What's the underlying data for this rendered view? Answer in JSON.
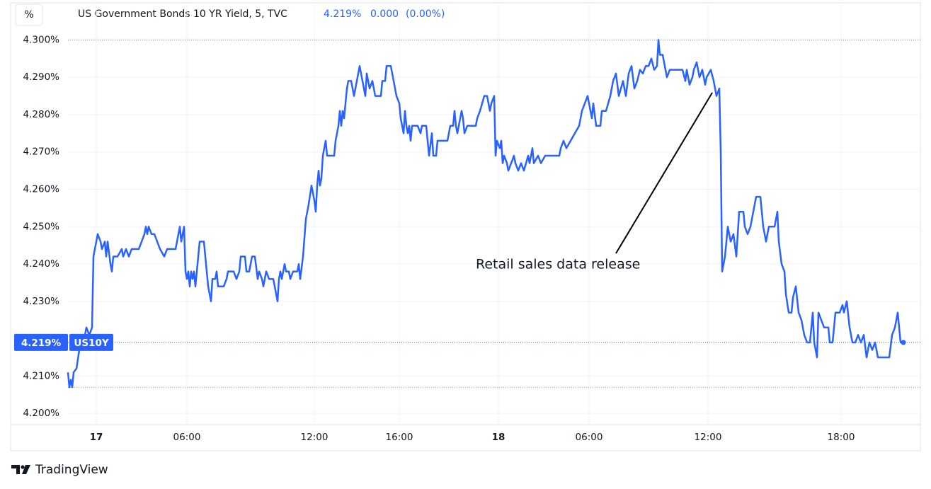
{
  "chart_data": {
    "type": "line",
    "unit": "%",
    "title": "US Government Bonds 10 YR Yield, 5, TVC",
    "last": {
      "value": 4.219,
      "label": "4.219%"
    },
    "change": "0.000",
    "change_pct": "(0.00%)",
    "symbol": "US10Y",
    "annotations": [
      "Retail sales data release"
    ],
    "brand": "TradingView",
    "high": 4.3,
    "low": 4.207,
    "grid": true,
    "xlim": [
      0,
      602
    ],
    "ylim": [
      4.197,
      4.305
    ],
    "yticks": [
      {
        "value": 4.2,
        "label": "4.200%"
      },
      {
        "value": 4.21,
        "label": "4.210%"
      },
      {
        "value": 4.23,
        "label": "4.230%"
      },
      {
        "value": 4.24,
        "label": "4.240%"
      },
      {
        "value": 4.25,
        "label": "4.250%"
      },
      {
        "value": 4.26,
        "label": "4.260%"
      },
      {
        "value": 4.27,
        "label": "4.270%"
      },
      {
        "value": 4.28,
        "label": "4.280%"
      },
      {
        "value": 4.29,
        "label": "4.290%"
      },
      {
        "value": 4.3,
        "label": "4.300%"
      }
    ],
    "xticks": [
      {
        "value": 20,
        "label": "17"
      },
      {
        "value": 84,
        "label": "06:00"
      },
      {
        "value": 174,
        "label": "12:00"
      },
      {
        "value": 234,
        "label": "16:00"
      },
      {
        "value": 304,
        "label": "18"
      },
      {
        "value": 368,
        "label": "06:00"
      },
      {
        "value": 452,
        "label": "12:00"
      },
      {
        "value": 546,
        "label": "18:00"
      }
    ],
    "x": [
      0,
      1,
      2,
      3,
      4,
      6,
      8,
      10,
      12,
      13,
      15,
      17,
      18,
      19,
      21,
      23,
      24,
      26,
      27,
      28,
      30,
      31,
      32,
      35,
      38,
      39,
      41,
      43,
      45,
      50,
      52,
      54,
      55,
      56,
      57,
      59,
      61,
      63,
      65,
      68,
      70,
      76,
      78,
      79,
      80,
      82,
      83,
      84,
      85,
      86,
      87,
      88,
      89,
      90,
      92,
      93,
      96,
      98,
      99,
      100,
      101,
      102,
      104,
      105,
      106,
      110,
      112,
      113,
      117,
      119,
      121,
      122,
      125,
      126,
      128,
      130,
      132,
      134,
      135,
      137,
      138,
      140,
      142,
      145,
      147,
      148,
      149,
      150,
      151,
      153,
      154,
      156,
      157,
      159,
      162,
      163,
      164,
      166,
      168,
      170,
      172,
      174,
      175,
      176,
      177,
      178,
      179,
      180,
      182,
      183,
      188,
      189,
      191,
      192,
      193,
      194,
      195,
      196,
      197,
      198,
      200,
      202,
      204,
      206,
      208,
      209,
      210,
      211,
      213,
      215,
      217,
      221,
      222,
      224,
      225,
      228,
      230,
      231,
      232,
      234,
      235,
      236,
      237,
      238,
      239,
      240,
      241,
      242,
      243,
      247,
      249,
      250,
      253,
      254,
      255,
      257,
      258,
      260,
      261,
      268,
      270,
      272,
      273,
      274,
      275,
      277,
      278,
      279,
      280,
      282,
      288,
      289,
      291,
      294,
      296,
      298,
      299,
      301,
      302,
      303,
      305,
      306,
      307,
      308,
      310,
      311,
      313,
      315,
      316,
      318,
      320,
      322,
      325,
      326,
      328,
      329,
      332,
      334,
      337,
      347,
      348,
      350,
      352,
      355,
      358,
      361,
      363,
      365,
      367,
      369,
      370,
      371,
      373,
      376,
      377,
      380,
      383,
      385,
      387,
      389,
      392,
      394,
      396,
      398,
      400,
      402,
      404,
      406,
      408,
      410,
      412,
      414,
      416,
      417,
      418,
      420,
      422,
      423,
      425,
      434,
      436,
      437,
      439,
      441,
      442,
      444,
      446,
      448,
      450,
      451,
      454,
      456,
      458,
      460,
      461,
      462,
      464,
      466,
      468,
      470,
      472,
      474,
      477,
      478,
      480,
      482,
      484,
      486,
      489,
      491,
      493,
      495,
      499,
      501,
      502,
      504,
      506,
      507,
      509,
      511,
      512,
      514,
      516,
      518,
      520,
      522,
      524,
      526,
      527,
      529,
      530,
      532,
      534,
      537,
      538,
      540,
      542,
      545,
      547,
      548,
      550,
      552,
      554,
      556,
      558,
      560,
      562,
      564,
      566,
      568,
      570,
      572,
      580,
      582,
      584,
      586,
      588,
      590
    ],
    "series": [
      {
        "name": "US10Y",
        "color": "#2962ff",
        "values": [
          4.211,
          4.207,
          4.209,
          4.207,
          4.211,
          4.212,
          4.217,
          4.219,
          4.221,
          4.223,
          4.221,
          4.223,
          4.242,
          4.244,
          4.248,
          4.246,
          4.244,
          4.246,
          4.242,
          4.246,
          4.24,
          4.238,
          4.242,
          4.242,
          4.244,
          4.242,
          4.244,
          4.242,
          4.244,
          4.244,
          4.246,
          4.248,
          4.25,
          4.248,
          4.25,
          4.248,
          4.248,
          4.246,
          4.244,
          4.242,
          4.244,
          4.244,
          4.248,
          4.25,
          4.246,
          4.25,
          4.238,
          4.236,
          4.238,
          4.234,
          4.238,
          4.236,
          4.238,
          4.234,
          4.242,
          4.246,
          4.246,
          4.238,
          4.234,
          4.232,
          4.23,
          4.236,
          4.236,
          4.238,
          4.234,
          4.234,
          4.236,
          4.238,
          4.238,
          4.236,
          4.238,
          4.242,
          4.242,
          4.238,
          4.238,
          4.242,
          4.242,
          4.236,
          4.238,
          4.236,
          4.234,
          4.238,
          4.236,
          4.236,
          4.232,
          4.23,
          4.236,
          4.238,
          4.236,
          4.24,
          4.238,
          4.238,
          4.236,
          4.238,
          4.238,
          4.24,
          4.236,
          4.242,
          4.252,
          4.256,
          4.261,
          4.257,
          4.254,
          4.261,
          4.265,
          4.261,
          4.263,
          4.269,
          4.273,
          4.269,
          4.269,
          4.273,
          4.277,
          4.281,
          4.277,
          4.281,
          4.279,
          4.283,
          4.287,
          4.289,
          4.289,
          4.285,
          4.289,
          4.293,
          4.289,
          4.287,
          4.285,
          4.291,
          4.287,
          4.289,
          4.285,
          4.285,
          4.289,
          4.289,
          4.293,
          4.293,
          4.289,
          4.287,
          4.285,
          4.283,
          4.279,
          4.277,
          4.275,
          4.281,
          4.277,
          4.275,
          4.277,
          4.273,
          4.277,
          4.277,
          4.275,
          4.277,
          4.277,
          4.273,
          4.269,
          4.275,
          4.269,
          4.269,
          4.273,
          4.273,
          4.277,
          4.277,
          4.281,
          4.277,
          4.275,
          4.279,
          4.281,
          4.279,
          4.275,
          4.277,
          4.277,
          4.279,
          4.281,
          4.285,
          4.285,
          4.281,
          4.283,
          4.285,
          4.269,
          4.273,
          4.271,
          4.273,
          4.267,
          4.269,
          4.267,
          4.265,
          4.267,
          4.269,
          4.267,
          4.265,
          4.267,
          4.265,
          4.269,
          4.267,
          4.271,
          4.267,
          4.269,
          4.267,
          4.269,
          4.269,
          4.271,
          4.273,
          4.271,
          4.273,
          4.275,
          4.277,
          4.281,
          4.283,
          4.285,
          4.281,
          4.279,
          4.283,
          4.277,
          4.277,
          4.281,
          4.281,
          4.285,
          4.289,
          4.291,
          4.285,
          4.289,
          4.285,
          4.291,
          4.293,
          4.287,
          4.289,
          4.292,
          4.291,
          4.293,
          4.293,
          4.295,
          4.292,
          4.293,
          4.3,
          4.296,
          4.296,
          4.292,
          4.29,
          4.292,
          4.292,
          4.289,
          4.292,
          4.288,
          4.29,
          4.292,
          4.294,
          4.29,
          4.292,
          4.288,
          4.29,
          4.292,
          4.289,
          4.285,
          4.287,
          4.27,
          4.238,
          4.242,
          4.25,
          4.246,
          4.248,
          4.242,
          4.254,
          4.254,
          4.25,
          4.248,
          4.25,
          4.254,
          4.258,
          4.258,
          4.25,
          4.246,
          4.25,
          4.25,
          4.254,
          4.246,
          4.24,
          4.238,
          4.232,
          4.227,
          4.227,
          4.231,
          4.234,
          4.227,
          4.225,
          4.221,
          4.219,
          4.219,
          4.227,
          4.219,
          4.215,
          4.227,
          4.225,
          4.223,
          4.223,
          4.219,
          4.219,
          4.227,
          4.227,
          4.229,
          4.227,
          4.23,
          4.223,
          4.219,
          4.219,
          4.221,
          4.219,
          4.221,
          4.215,
          4.219,
          4.217,
          4.219,
          4.215,
          4.215,
          4.221,
          4.223,
          4.227,
          4.219,
          4.219
        ]
      }
    ]
  }
}
